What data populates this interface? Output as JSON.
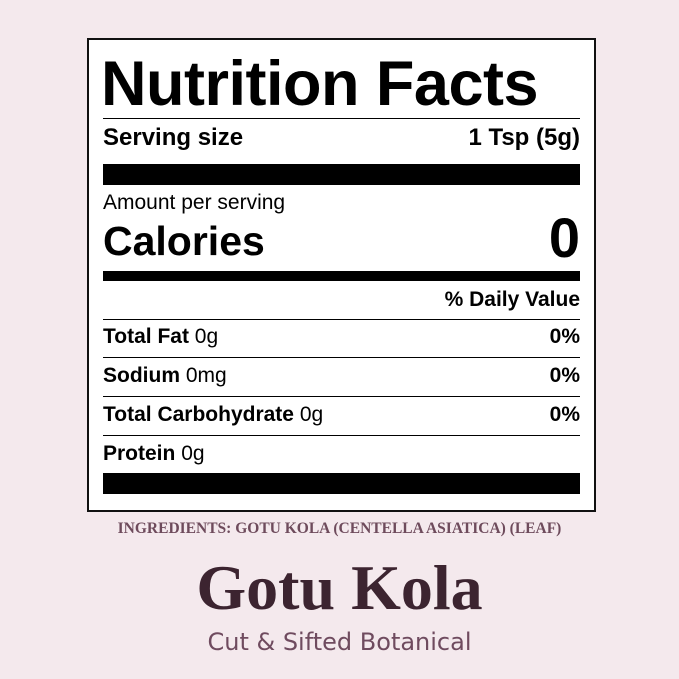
{
  "label": {
    "title": "Nutrition Facts",
    "serving_size_label": "Serving size",
    "serving_size_value": "1 Tsp (5g)",
    "amount_per_serving": "Amount per serving",
    "calories_label": "Calories",
    "calories_value": "0",
    "daily_value_header": "% Daily Value",
    "nutrients": [
      {
        "name": "Total Fat",
        "amount": "0g",
        "dv": "0%"
      },
      {
        "name": "Sodium",
        "amount": "0mg",
        "dv": "0%"
      },
      {
        "name": "Total Carbohydrate",
        "amount": "0g",
        "dv": "0%"
      },
      {
        "name": "Protein",
        "amount": "0g",
        "dv": ""
      }
    ]
  },
  "ingredients": "INGREDIENTS: GOTU KOLA (CENTELLA ASIATICA) (LEAF)",
  "product_name": "Gotu Kola",
  "product_subtitle": "Cut & Sifted Botanical",
  "colors": {
    "background": "#f4e9ed",
    "brand_dark": "#3c2430",
    "brand_muted": "#6e4b5c"
  }
}
